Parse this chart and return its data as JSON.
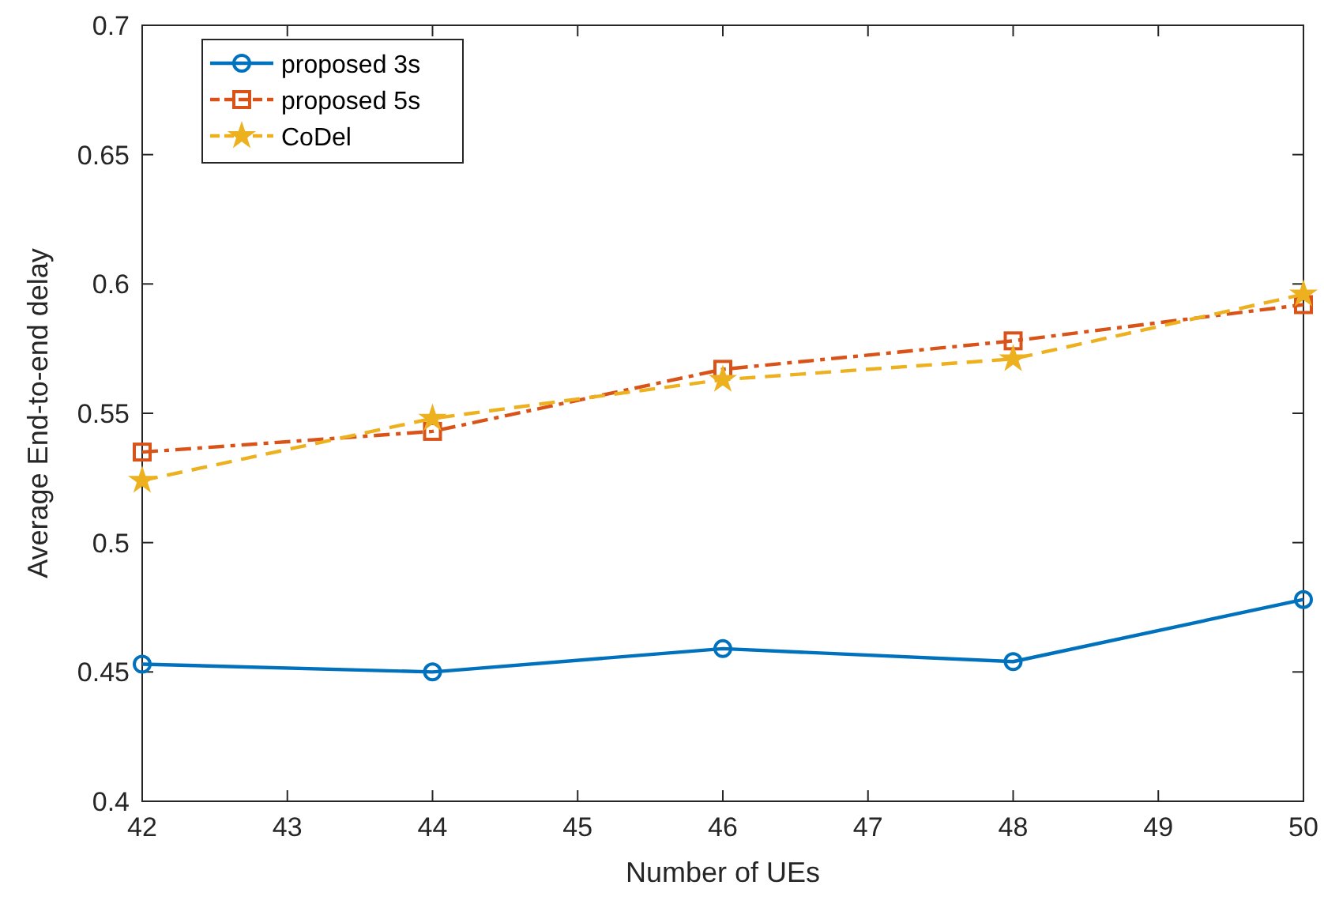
{
  "chart_data": {
    "type": "line",
    "xlabel": "Number of UEs",
    "ylabel": "Average End-to-end delay",
    "x": [
      42,
      44,
      46,
      48,
      50
    ],
    "series": [
      {
        "name": "proposed 3s",
        "color": "#0072bd",
        "marker": "circle",
        "line_style": "solid",
        "values": [
          0.453,
          0.45,
          0.459,
          0.454,
          0.478
        ]
      },
      {
        "name": "proposed 5s",
        "color": "#d95319",
        "marker": "square",
        "line_style": "dashdot",
        "values": [
          0.535,
          0.543,
          0.567,
          0.578,
          0.592
        ]
      },
      {
        "name": "CoDel",
        "color": "#edb120",
        "marker": "star",
        "line_style": "dashed",
        "values": [
          0.524,
          0.548,
          0.563,
          0.571,
          0.596
        ]
      }
    ],
    "xlim": [
      42,
      50
    ],
    "xticks": [
      42,
      43,
      44,
      45,
      46,
      47,
      48,
      49,
      50
    ],
    "ylim": [
      0.4,
      0.7
    ],
    "yticks": [
      0.4,
      0.45,
      0.5,
      0.55,
      0.6,
      0.65,
      0.7
    ],
    "grid": false,
    "legend": "top left"
  }
}
